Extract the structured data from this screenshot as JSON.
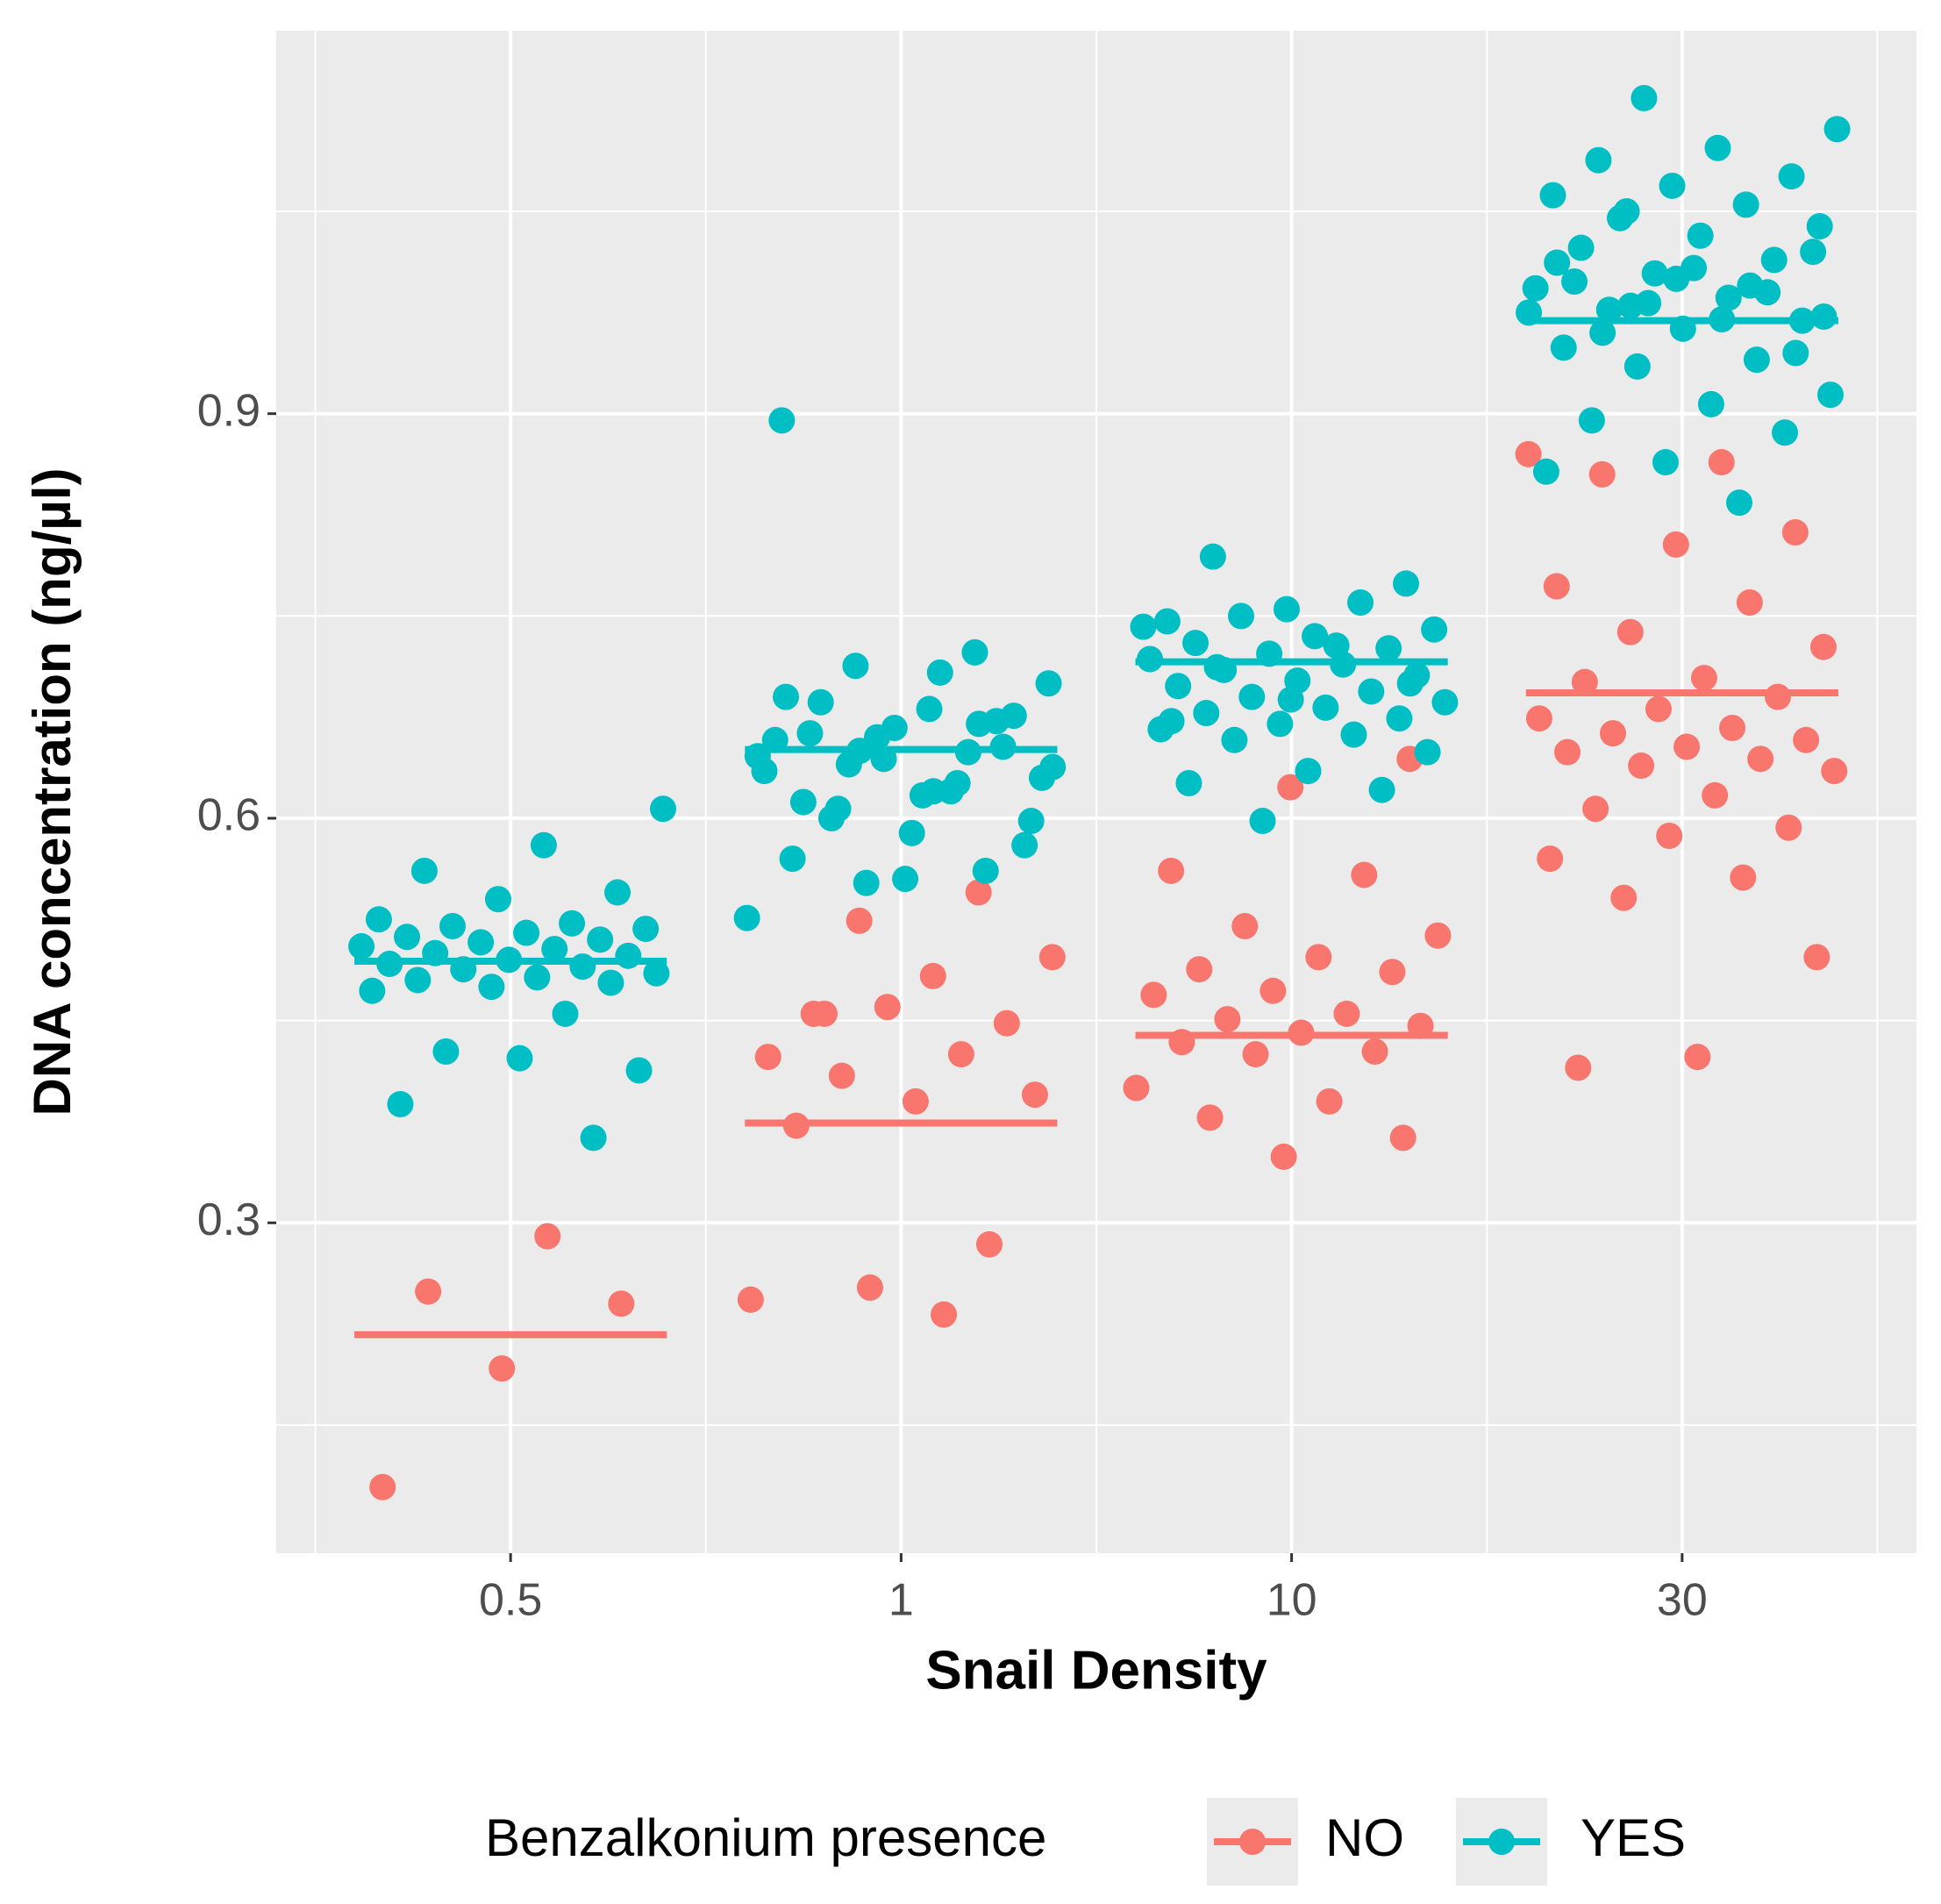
{
  "chart_data": {
    "type": "strip",
    "x_label": "Snail Density",
    "y_label": "DNA concentration (ng/µl)",
    "legend_title": "Benzalkonium presence",
    "legend_position": "bottom",
    "categories": [
      "0.5",
      "1",
      "10",
      "30"
    ],
    "ylim": [
      0.055,
      1.184
    ],
    "yticks": [
      0.3,
      0.6,
      0.9
    ],
    "y_minor_ticks": [
      0.15,
      0.45,
      0.75,
      1.05
    ],
    "grid": true,
    "series": [
      {
        "name": "NO",
        "color": "#f8766d",
        "values": [
          [
            0.29,
            0.249,
            0.24,
            0.192,
            0.104
          ],
          [
            0.545,
            0.524,
            0.497,
            0.483,
            0.455,
            0.448,
            0.46,
            0.423,
            0.425,
            0.409,
            0.395,
            0.39,
            0.372,
            0.284,
            0.252,
            0.243,
            0.232,
            0.455
          ],
          [
            0.644,
            0.623,
            0.561,
            0.558,
            0.52,
            0.513,
            0.497,
            0.488,
            0.486,
            0.472,
            0.469,
            0.455,
            0.451,
            0.446,
            0.441,
            0.434,
            0.427,
            0.425,
            0.4,
            0.39,
            0.378,
            0.363,
            0.349
          ],
          [
            0.87,
            0.864,
            0.855,
            0.812,
            0.803,
            0.772,
            0.76,
            0.738,
            0.727,
            0.704,
            0.701,
            0.69,
            0.681,
            0.674,
            0.667,
            0.663,
            0.658,
            0.653,
            0.649,
            0.644,
            0.639,
            0.635,
            0.617,
            0.607,
            0.593,
            0.587,
            0.57,
            0.556,
            0.541,
            0.497,
            0.423,
            0.415
          ]
        ],
        "means": [
          0.217,
          0.374,
          0.439,
          0.693
        ]
      },
      {
        "name": "YES",
        "color": "#00bfc4",
        "values": [
          [
            0.607,
            0.58,
            0.561,
            0.545,
            0.54,
            0.525,
            0.522,
            0.52,
            0.518,
            0.515,
            0.512,
            0.51,
            0.508,
            0.505,
            0.503,
            0.5,
            0.498,
            0.495,
            0.492,
            0.49,
            0.488,
            0.485,
            0.482,
            0.48,
            0.478,
            0.475,
            0.472,
            0.455,
            0.427,
            0.413,
            0.422,
            0.388,
            0.363
          ],
          [
            0.895,
            0.723,
            0.713,
            0.7,
            0.681,
            0.663,
            0.653,
            0.644,
            0.635,
            0.626,
            0.607,
            0.598,
            0.589,
            0.57,
            0.561,
            0.552,
            0.526,
            0.708,
            0.686,
            0.676,
            0.667,
            0.658,
            0.649,
            0.64,
            0.63,
            0.617,
            0.612,
            0.672,
            0.66,
            0.646,
            0.62,
            0.6,
            0.58,
            0.555,
            0.69,
            0.67,
            0.65,
            0.638,
            0.62
          ],
          [
            0.794,
            0.774,
            0.755,
            0.746,
            0.76,
            0.75,
            0.74,
            0.735,
            0.73,
            0.726,
            0.722,
            0.718,
            0.714,
            0.71,
            0.706,
            0.702,
            0.698,
            0.694,
            0.69,
            0.686,
            0.682,
            0.678,
            0.674,
            0.67,
            0.666,
            0.662,
            0.658,
            0.649,
            0.635,
            0.626,
            0.621,
            0.598,
            0.742,
            0.728,
            0.712,
            0.7,
            0.688,
            0.672
          ],
          [
            1.134,
            1.111,
            1.097,
            1.088,
            1.076,
            1.069,
            1.062,
            1.055,
            1.05,
            1.039,
            1.032,
            1.023,
            1.014,
            1.004,
            0.993,
            0.986,
            0.977,
            0.969,
            0.963,
            0.949,
            0.94,
            0.935,
            0.914,
            0.907,
            0.895,
            0.886,
            0.864,
            0.857,
            0.834,
            1.045,
            1.02,
            1.008,
            0.998,
            0.99,
            0.982,
            0.975,
            0.97,
            0.96,
            0.945,
            1.0,
            1.012,
            0.995,
            0.98,
            0.972
          ]
        ],
        "means": [
          0.494,
          0.651,
          0.716,
          0.969
        ]
      }
    ]
  }
}
